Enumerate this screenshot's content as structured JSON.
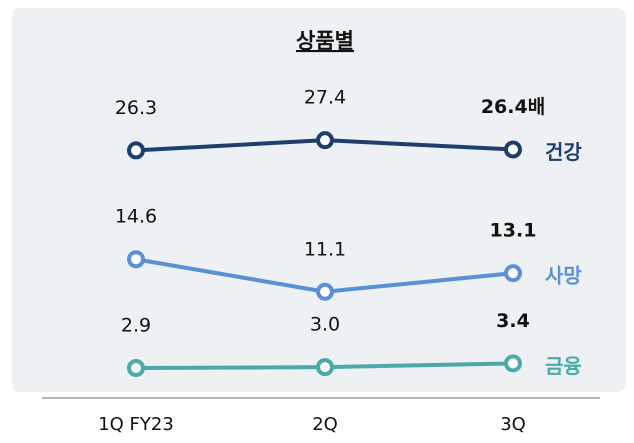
{
  "chart_data": {
    "type": "line",
    "title": "상품별",
    "categories": [
      "1Q FY23",
      "2Q",
      "3Q"
    ],
    "ylim": [
      0,
      30
    ],
    "series": [
      {
        "name": "건강",
        "color": "#1f3e6e",
        "values": [
          26.3,
          27.4,
          26.4
        ],
        "value_labels": [
          "26.3",
          "27.4",
          "26.4배"
        ]
      },
      {
        "name": "사망",
        "color": "#5b8fd6",
        "values": [
          14.6,
          11.1,
          13.1
        ]
      },
      {
        "name": "금융",
        "color": "#4aaaa8",
        "values": [
          2.9,
          3.0,
          3.4
        ],
        "value_labels": [
          "2.9",
          "3.0",
          "3.4"
        ]
      }
    ]
  }
}
